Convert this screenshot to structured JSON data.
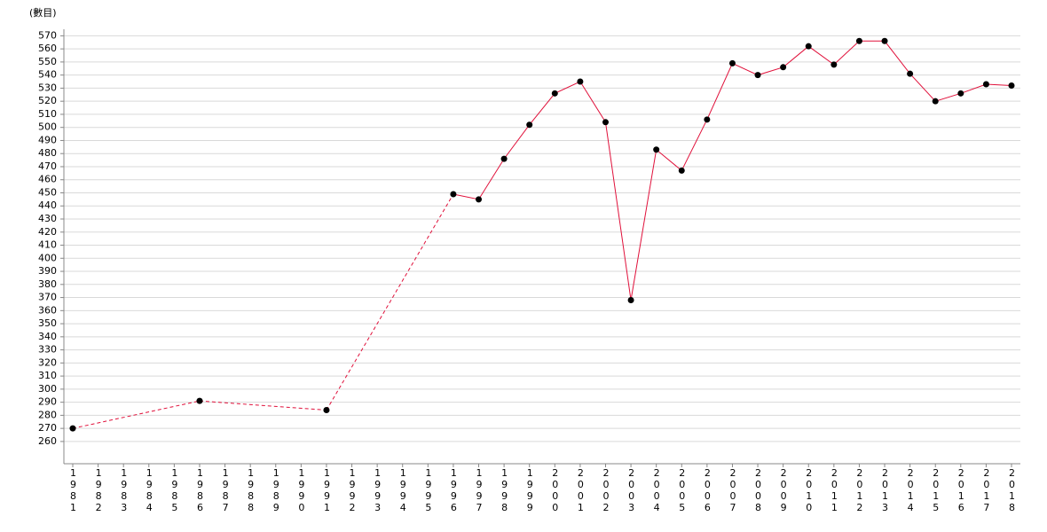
{
  "chart_data": {
    "type": "line",
    "y_label": "(數目)",
    "categories": [
      "1981",
      "1982",
      "1983",
      "1984",
      "1985",
      "1986",
      "1987",
      "1988",
      "1989",
      "1990",
      "1991",
      "1992",
      "1993",
      "1994",
      "1995",
      "1996",
      "1997",
      "1998",
      "1999",
      "2000",
      "2001",
      "2002",
      "2003",
      "2004",
      "2005",
      "2006",
      "2007",
      "2008",
      "2009",
      "2010",
      "2011",
      "2012",
      "2013",
      "2014",
      "2015",
      "2016",
      "2017",
      "2018"
    ],
    "series": [
      {
        "color": "#e0103a",
        "values": [
          270,
          null,
          null,
          null,
          null,
          291,
          null,
          null,
          null,
          null,
          284,
          null,
          null,
          null,
          null,
          449,
          445,
          476,
          502,
          526,
          535,
          504,
          368,
          483,
          467,
          506,
          549,
          540,
          546,
          562,
          548,
          566,
          566,
          541,
          520,
          526,
          533,
          532
        ]
      }
    ],
    "ylim": [
      243,
      575
    ],
    "yticks": [
      260,
      270,
      280,
      290,
      300,
      310,
      320,
      330,
      340,
      350,
      360,
      370,
      380,
      390,
      400,
      410,
      420,
      430,
      440,
      450,
      460,
      470,
      480,
      490,
      500,
      510,
      520,
      530,
      540,
      550,
      560,
      570
    ],
    "grid": true
  }
}
